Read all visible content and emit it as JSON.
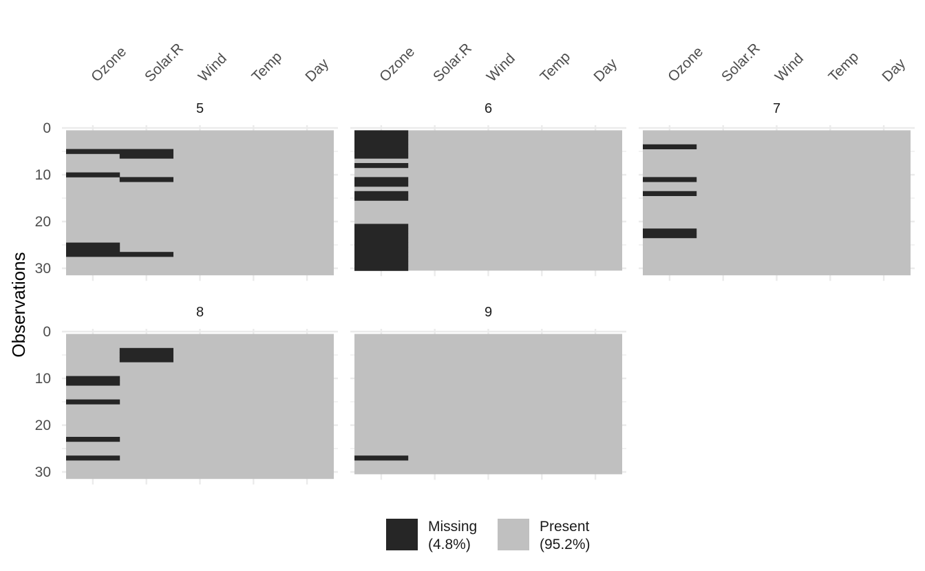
{
  "chart_data": {
    "type": "heatmap",
    "chart_kind": "missingness faceted by Month",
    "title": "",
    "xlabel": "",
    "ylabel": "Observations",
    "variables": [
      "Ozone",
      "Solar.R",
      "Wind",
      "Temp",
      "Day"
    ],
    "y_ticks": [
      0,
      10,
      20,
      30
    ],
    "grid": true,
    "legend_position": "bottom",
    "legend": [
      {
        "key": "missing",
        "label": "Missing",
        "pct": "(4.8%)",
        "color": "#262626"
      },
      {
        "key": "present",
        "label": "Present",
        "pct": "(95.2%)",
        "color": "#c0c0c0"
      }
    ],
    "panels": [
      {
        "label": "5",
        "rows": 31,
        "missing": {
          "Ozone": [
            5,
            10,
            25,
            26,
            27
          ],
          "Solar.R": [
            5,
            6,
            11,
            27
          ]
        }
      },
      {
        "label": "6",
        "rows": 30,
        "missing": {
          "Ozone": [
            1,
            2,
            3,
            4,
            5,
            6,
            8,
            11,
            12,
            14,
            15,
            21,
            22,
            23,
            24,
            25,
            26,
            27,
            28,
            29,
            30
          ],
          "Solar.R": []
        }
      },
      {
        "label": "7",
        "rows": 31,
        "missing": {
          "Ozone": [
            4,
            11,
            14,
            22,
            23
          ],
          "Solar.R": []
        }
      },
      {
        "label": "8",
        "rows": 31,
        "missing": {
          "Ozone": [
            10,
            11,
            15,
            23,
            27
          ],
          "Solar.R": [
            4,
            5,
            6
          ]
        }
      },
      {
        "label": "9",
        "rows": 30,
        "missing": {
          "Ozone": [
            27
          ],
          "Solar.R": []
        }
      }
    ]
  }
}
